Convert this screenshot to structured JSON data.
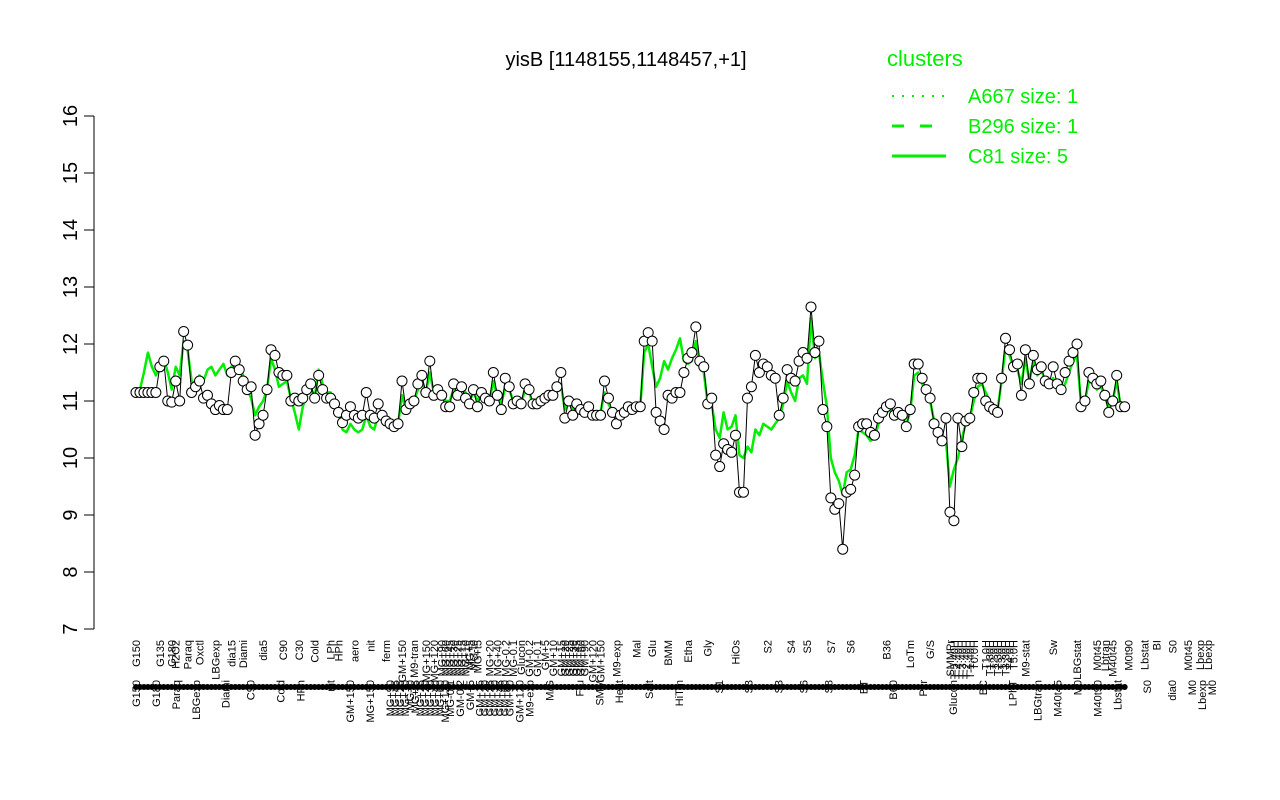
{
  "chart_data": {
    "type": "line",
    "title": "yisB [1148155,1148457,+1]",
    "xlabel": "",
    "ylabel": "",
    "ylim": [
      7,
      16
    ],
    "yticks": [
      7,
      8,
      9,
      10,
      11,
      12,
      13,
      14,
      15,
      16
    ],
    "legend": {
      "position": "top-right",
      "title": "clusters",
      "entries": [
        {
          "label": "A667 size: 1",
          "style": "dotted",
          "color": "#00ee00"
        },
        {
          "label": "B296 size: 1",
          "style": "dashed",
          "color": "#00ee00"
        },
        {
          "label": "C81 size: 5",
          "style": "solid",
          "color": "#00ee00"
        }
      ]
    },
    "upper_labels": [
      {
        "x": 1,
        "label": "G150"
      },
      {
        "x": 7,
        "label": "G135"
      },
      {
        "x": 10,
        "label": "G180"
      },
      {
        "x": 11,
        "label": "H2O2"
      },
      {
        "x": 14,
        "label": "Paraq"
      },
      {
        "x": 17,
        "label": "Oxctl"
      },
      {
        "x": 21,
        "label": "LBGexp"
      },
      {
        "x": 25,
        "label": "dia15"
      },
      {
        "x": 28,
        "label": "Diami"
      },
      {
        "x": 33,
        "label": "dia5"
      },
      {
        "x": 38,
        "label": "C90"
      },
      {
        "x": 42,
        "label": "C30"
      },
      {
        "x": 46,
        "label": "Cold"
      },
      {
        "x": 50,
        "label": "LPh"
      },
      {
        "x": 52,
        "label": "HPh"
      },
      {
        "x": 56,
        "label": "aero"
      },
      {
        "x": 60,
        "label": "nit"
      },
      {
        "x": 64,
        "label": "ferm"
      },
      {
        "x": 68,
        "label": "GM+150"
      },
      {
        "x": 71,
        "label": "M9-tran"
      },
      {
        "x": 74,
        "label": "MG+150"
      },
      {
        "x": 76,
        "label": "MG+120"
      },
      {
        "x": 78,
        "label": "MG+90"
      },
      {
        "x": 79,
        "label": "MG+60"
      },
      {
        "x": 80,
        "label": "MG+45"
      },
      {
        "x": 81,
        "label": "MG+30"
      },
      {
        "x": 82,
        "label": "MG+25"
      },
      {
        "x": 83,
        "label": "MG+15"
      },
      {
        "x": 84,
        "label": "MG+10"
      },
      {
        "x": 85,
        "label": "MG+5"
      },
      {
        "x": 86,
        "label": "MG-t0"
      },
      {
        "x": 87,
        "label": "MG+t5"
      },
      {
        "x": 90,
        "label": "MG+20"
      },
      {
        "x": 92,
        "label": "MG+40"
      },
      {
        "x": 94,
        "label": "MG-0.2"
      },
      {
        "x": 96,
        "label": "MG-0.1"
      },
      {
        "x": 98,
        "label": "Glucon"
      },
      {
        "x": 100,
        "label": "GM-0.2"
      },
      {
        "x": 102,
        "label": "GM-0.1"
      },
      {
        "x": 104,
        "label": "GM+5"
      },
      {
        "x": 106,
        "label": "GM+10"
      },
      {
        "x": 108,
        "label": "GM+15"
      },
      {
        "x": 109,
        "label": "GM+20"
      },
      {
        "x": 110,
        "label": "GM+25"
      },
      {
        "x": 111,
        "label": "GM+30"
      },
      {
        "x": 112,
        "label": "GM+45"
      },
      {
        "x": 113,
        "label": "GM+60"
      },
      {
        "x": 114,
        "label": "GM+90"
      },
      {
        "x": 116,
        "label": "GM+120"
      },
      {
        "x": 118,
        "label": "GM+150"
      },
      {
        "x": 122,
        "label": "M9-exp"
      },
      {
        "x": 127,
        "label": "Mal"
      },
      {
        "x": 131,
        "label": "Glu"
      },
      {
        "x": 135,
        "label": "BMM"
      },
      {
        "x": 140,
        "label": "Etha"
      },
      {
        "x": 145,
        "label": "Gly"
      },
      {
        "x": 152,
        "label": "HiOs"
      },
      {
        "x": 160,
        "label": "S2"
      },
      {
        "x": 166,
        "label": "S4"
      },
      {
        "x": 170,
        "label": "S5"
      },
      {
        "x": 176,
        "label": "S7"
      },
      {
        "x": 181,
        "label": "S6"
      },
      {
        "x": 190,
        "label": "B36"
      },
      {
        "x": 196,
        "label": "LoTm"
      },
      {
        "x": 201,
        "label": "G/S"
      },
      {
        "x": 206,
        "label": "SMMPr"
      },
      {
        "x": 207,
        "label": "T-5.40H"
      },
      {
        "x": 208,
        "label": "T-4.40H"
      },
      {
        "x": 209,
        "label": "T-3.40H"
      },
      {
        "x": 210,
        "label": "T-2.40H"
      },
      {
        "x": 211,
        "label": "T-1.40H"
      },
      {
        "x": 212,
        "label": "T0.0H"
      },
      {
        "x": 215,
        "label": "T1.0H"
      },
      {
        "x": 216,
        "label": "T1.30H"
      },
      {
        "x": 217,
        "label": "T2.0H"
      },
      {
        "x": 218,
        "label": "T2.30H"
      },
      {
        "x": 219,
        "label": "T3.0H"
      },
      {
        "x": 220,
        "label": "T3.30H"
      },
      {
        "x": 221,
        "label": "T4.0H"
      },
      {
        "x": 222,
        "label": "T5.0H"
      },
      {
        "x": 225,
        "label": "M9-stat"
      },
      {
        "x": 232,
        "label": "Sw"
      },
      {
        "x": 238,
        "label": "LBGstat"
      },
      {
        "x": 243,
        "label": "M0t45"
      },
      {
        "x": 245,
        "label": "Lbtran"
      },
      {
        "x": 247,
        "label": "M40t45"
      },
      {
        "x": 251,
        "label": "M0t90"
      },
      {
        "x": 255,
        "label": "Lbstat"
      },
      {
        "x": 258,
        "label": "BI"
      },
      {
        "x": 262,
        "label": "S0"
      },
      {
        "x": 266,
        "label": "M0t45"
      },
      {
        "x": 269,
        "label": "Lbexp"
      },
      {
        "x": 271,
        "label": "Lbexp"
      }
    ],
    "lower_labels": [
      {
        "x": 1,
        "label": "G150"
      },
      {
        "x": 5,
        "label": "G180"
      },
      {
        "x": 9,
        "label": "Paraq"
      },
      {
        "x": 13,
        "label": "LBGexp"
      },
      {
        "x": 19,
        "label": "Diami"
      },
      {
        "x": 24,
        "label": "C90"
      },
      {
        "x": 30,
        "label": "Cold"
      },
      {
        "x": 34,
        "label": "HPh"
      },
      {
        "x": 40,
        "label": "nit"
      },
      {
        "x": 44,
        "label": "GM+150"
      },
      {
        "x": 48,
        "label": "MG+150"
      },
      {
        "x": 52,
        "label": "MG+90"
      },
      {
        "x": 53,
        "label": "MG+45"
      },
      {
        "x": 54,
        "label": "MG+25"
      },
      {
        "x": 55,
        "label": "MG+10"
      },
      {
        "x": 56,
        "label": "MG-t0"
      },
      {
        "x": 57,
        "label": "MG+t5"
      },
      {
        "x": 58,
        "label": "MG+15"
      },
      {
        "x": 59,
        "label": "MG+20"
      },
      {
        "x": 60,
        "label": "MG+30"
      },
      {
        "x": 61,
        "label": "MG+40"
      },
      {
        "x": 62,
        "label": "MG+60"
      },
      {
        "x": 63,
        "label": "MG+120"
      },
      {
        "x": 64,
        "label": "MG-0.1"
      },
      {
        "x": 66,
        "label": "GM-0.2"
      },
      {
        "x": 68,
        "label": "GM+5"
      },
      {
        "x": 70,
        "label": "GM+15"
      },
      {
        "x": 71,
        "label": "GM+20"
      },
      {
        "x": 72,
        "label": "GM+25"
      },
      {
        "x": 73,
        "label": "GM+30"
      },
      {
        "x": 74,
        "label": "GM+45"
      },
      {
        "x": 75,
        "label": "GM+60"
      },
      {
        "x": 76,
        "label": "GM+90"
      },
      {
        "x": 78,
        "label": "GM+120"
      },
      {
        "x": 80,
        "label": "M9-exp"
      },
      {
        "x": 84,
        "label": "M/G"
      },
      {
        "x": 90,
        "label": "Fru"
      },
      {
        "x": 94,
        "label": "SMM"
      },
      {
        "x": 98,
        "label": "Heat"
      },
      {
        "x": 104,
        "label": "Salt"
      },
      {
        "x": 110,
        "label": "HiTm"
      },
      {
        "x": 118,
        "label": "S1"
      },
      {
        "x": 124,
        "label": "S3"
      },
      {
        "x": 130,
        "label": "S3"
      },
      {
        "x": 135,
        "label": "S6"
      },
      {
        "x": 140,
        "label": "S8"
      },
      {
        "x": 147,
        "label": "BT"
      },
      {
        "x": 153,
        "label": "B60"
      },
      {
        "x": 159,
        "label": "Pyr"
      },
      {
        "x": 165,
        "label": "Glucon"
      },
      {
        "x": 171,
        "label": "BC"
      },
      {
        "x": 177,
        "label": "LPhT"
      },
      {
        "x": 182,
        "label": "LBGtran"
      },
      {
        "x": 186,
        "label": "M40t45"
      },
      {
        "x": 190,
        "label": "M0"
      },
      {
        "x": 194,
        "label": "M40t90"
      },
      {
        "x": 198,
        "label": "Lbstat"
      },
      {
        "x": 204,
        "label": "S0"
      },
      {
        "x": 209,
        "label": "dia0"
      },
      {
        "x": 213,
        "label": "M0"
      },
      {
        "x": 215,
        "label": "Lbexp"
      },
      {
        "x": 217,
        "label": "M0"
      }
    ],
    "x_range": [
      1,
      272
    ],
    "points_y": [
      11.15,
      11.15,
      11.15,
      11.15,
      11.15,
      11.15,
      11.6,
      11.7,
      11.0,
      10.98,
      11.35,
      11.0,
      12.22,
      11.98,
      11.15,
      11.25,
      11.35,
      11.05,
      11.1,
      10.95,
      10.85,
      10.92,
      10.85,
      10.85,
      11.5,
      11.7,
      11.55,
      11.35,
      11.2,
      11.25,
      10.4,
      10.6,
      10.75,
      11.2,
      11.9,
      11.8,
      11.5,
      11.45,
      11.45,
      11.0,
      11.05,
      11.0,
      11.05,
      11.2,
      11.3,
      11.05,
      11.45,
      11.2,
      11.05,
      11.05,
      10.95,
      10.8,
      10.62,
      10.75,
      10.9,
      10.75,
      10.7,
      10.75,
      11.15,
      10.75,
      10.7,
      10.95,
      10.75,
      10.65,
      10.6,
      10.55,
      10.6,
      11.35,
      10.85,
      10.95,
      11.0,
      11.3,
      11.45,
      11.15,
      11.7,
      11.1,
      11.2,
      11.1,
      10.9,
      10.9,
      11.3,
      11.1,
      11.25,
      11.05,
      10.95,
      11.2,
      10.9,
      11.15,
      11.05,
      11.0,
      11.5,
      11.1,
      10.85,
      11.4,
      11.25,
      10.95,
      11.0,
      10.95,
      11.3,
      11.2,
      10.95,
      10.95,
      11.0,
      11.05,
      11.1,
      11.1,
      11.25,
      11.5,
      10.7,
      11.0,
      10.75,
      10.95,
      10.85,
      10.8,
      10.9,
      10.75,
      10.75,
      10.75,
      11.35,
      11.05,
      10.8,
      10.6,
      10.75,
      10.8,
      10.9,
      10.85,
      10.9,
      10.9,
      12.05,
      12.2,
      12.05,
      10.8,
      10.65,
      10.5,
      11.1,
      11.05,
      11.15,
      11.15,
      11.5,
      11.75,
      11.85,
      12.3,
      11.7,
      11.6,
      10.95,
      11.05,
      10.05,
      9.85,
      10.25,
      10.15,
      10.1,
      10.4,
      9.4,
      9.4,
      11.05,
      11.25,
      11.8,
      11.5,
      11.65,
      11.6,
      11.45,
      11.4,
      10.75,
      11.05,
      11.55,
      11.4,
      11.35,
      11.7,
      11.85,
      11.75,
      12.65,
      11.85,
      12.05,
      10.85,
      10.55,
      9.3,
      9.1,
      9.2,
      8.4,
      9.4,
      9.45,
      9.7,
      10.55,
      10.6,
      10.6,
      10.45,
      10.4,
      10.7,
      10.8,
      10.9,
      10.95,
      10.75,
      10.8,
      10.75,
      10.55,
      10.85,
      11.65,
      11.65,
      11.4,
      11.2,
      11.05,
      10.6,
      10.45,
      10.3,
      10.7,
      9.05,
      8.9,
      10.7,
      10.2,
      10.65,
      10.7,
      11.15,
      11.4,
      11.4,
      11.0,
      10.9,
      10.85,
      10.8,
      11.4,
      12.1,
      11.9,
      11.6,
      11.65,
      11.1,
      11.9,
      11.3,
      11.8,
      11.55,
      11.6,
      11.35,
      11.3,
      11.6,
      11.3,
      11.2,
      11.5,
      11.7,
      11.85,
      12.0,
      10.9,
      11.0,
      11.5,
      11.4,
      11.3,
      11.35,
      11.1,
      10.8,
      11.0,
      11.45,
      10.9,
      10.9
    ],
    "series": [
      {
        "name": "C81 size: 5",
        "style": "solid",
        "values": [
          11.15,
          11.2,
          11.5,
          11.85,
          11.6,
          11.45,
          11.6,
          11.75,
          11.5,
          11.2,
          11.6,
          11.45,
          12.05,
          11.9,
          11.35,
          11.3,
          11.45,
          11.35,
          11.55,
          11.6,
          11.45,
          11.55,
          11.65,
          11.45,
          11.6,
          11.7,
          11.6,
          11.45,
          11.2,
          11.05,
          10.75,
          10.9,
          11.0,
          11.2,
          11.75,
          11.55,
          11.25,
          11.3,
          11.35,
          11.05,
          10.8,
          10.5,
          10.9,
          11.1,
          11.25,
          11.05,
          11.55,
          11.3,
          11.15,
          11.15,
          10.95,
          10.8,
          10.5,
          10.45,
          10.6,
          10.5,
          10.45,
          10.5,
          10.75,
          10.55,
          10.5,
          10.75,
          10.65,
          10.6,
          10.55,
          10.5,
          10.6,
          11.1,
          10.85,
          10.95,
          11.0,
          11.2,
          11.35,
          11.15,
          11.5,
          11.15,
          11.2,
          11.15,
          11.0,
          11.0,
          11.2,
          11.1,
          11.25,
          11.15,
          11.0,
          11.15,
          11.0,
          11.15,
          11.05,
          11.0,
          11.35,
          11.1,
          10.95,
          11.25,
          11.2,
          11.0,
          11.0,
          10.95,
          11.2,
          11.15,
          10.95,
          10.95,
          11.0,
          11.05,
          11.1,
          11.05,
          11.15,
          11.3,
          10.85,
          11.0,
          10.85,
          10.95,
          10.9,
          10.85,
          10.95,
          10.8,
          10.8,
          10.8,
          11.15,
          10.95,
          10.8,
          10.7,
          10.8,
          10.8,
          10.9,
          10.85,
          10.9,
          10.9,
          11.85,
          12.0,
          11.6,
          11.25,
          11.4,
          11.7,
          11.55,
          11.75,
          11.9,
          12.1,
          11.7,
          11.65,
          11.7,
          12.05,
          11.65,
          11.5,
          10.95,
          10.95,
          10.5,
          10.35,
          10.8,
          10.5,
          10.55,
          10.75,
          10.05,
          10.0,
          10.2,
          10.1,
          10.5,
          10.4,
          10.6,
          10.55,
          10.5,
          10.6,
          10.7,
          10.95,
          11.35,
          11.15,
          11.0,
          11.4,
          11.45,
          11.3,
          12.45,
          11.75,
          11.85,
          11.35,
          10.9,
          10.0,
          9.75,
          9.6,
          9.35,
          9.75,
          9.8,
          10.05,
          10.5,
          10.45,
          10.4,
          10.3,
          10.35,
          10.6,
          10.7,
          10.8,
          10.85,
          10.7,
          10.75,
          10.7,
          10.6,
          10.8,
          11.45,
          11.5,
          11.3,
          11.15,
          11.0,
          10.65,
          10.5,
          10.35,
          10.3,
          9.5,
          9.8,
          10.0,
          10.35,
          10.6,
          10.7,
          11.0,
          11.25,
          11.3,
          11.15,
          11.0,
          10.9,
          10.85,
          11.35,
          11.95,
          11.8,
          11.6,
          11.55,
          11.3,
          11.75,
          11.35,
          11.7,
          11.45,
          11.55,
          11.35,
          11.3,
          11.4,
          11.2,
          11.15,
          11.3,
          11.5,
          11.7,
          11.8,
          10.95,
          11.0,
          11.35,
          11.3,
          11.2,
          11.25,
          11.1,
          10.85,
          11.0,
          11.35,
          10.9,
          10.95
        ]
      }
    ]
  }
}
